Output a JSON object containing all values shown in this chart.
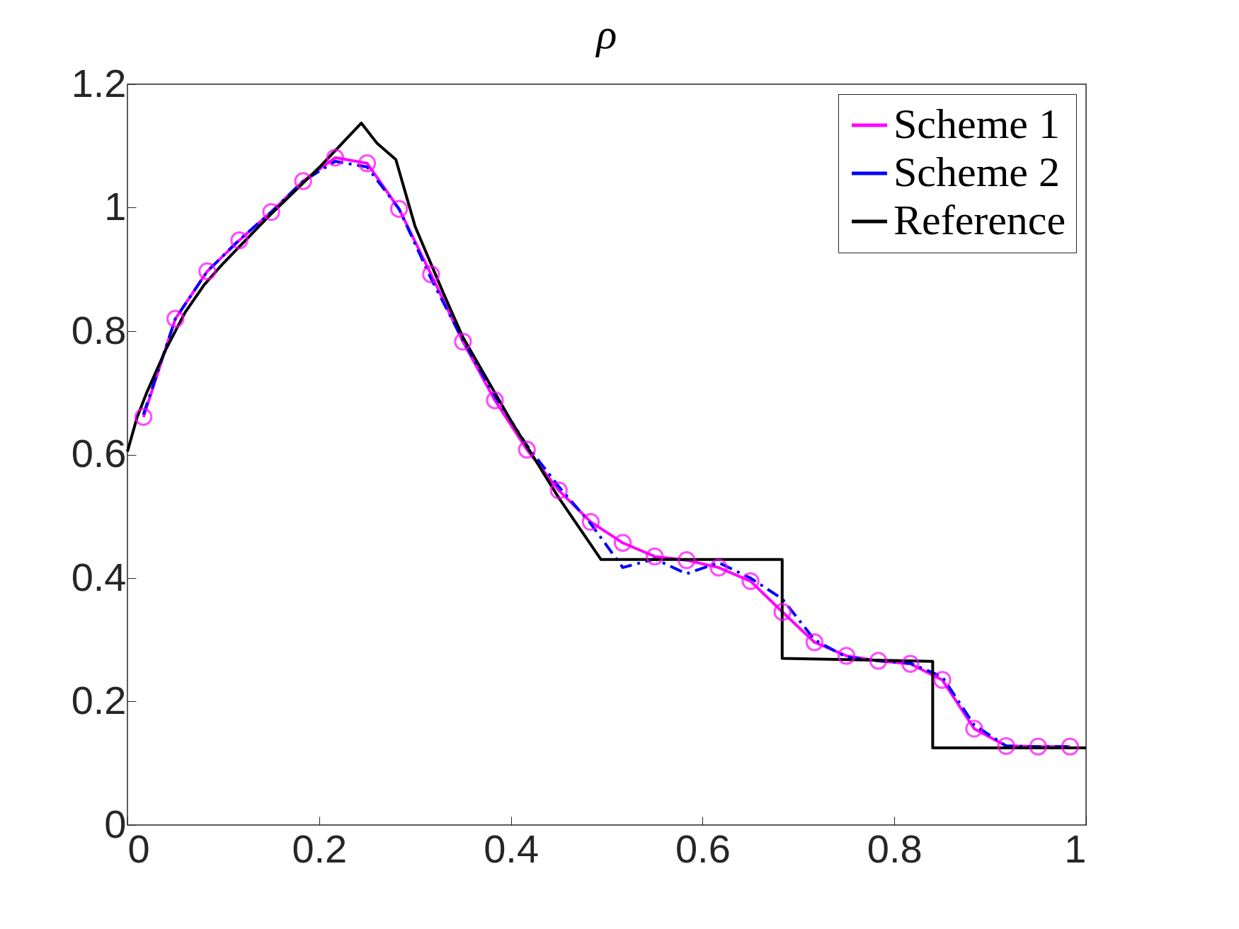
{
  "chart_data": {
    "type": "line",
    "title": "ρ",
    "xlim": [
      0,
      1
    ],
    "ylim": [
      0,
      1.2
    ],
    "xticks": [
      0,
      0.2,
      0.4,
      0.6,
      0.8,
      1
    ],
    "yticks": [
      0,
      0.2,
      0.4,
      0.6,
      0.8,
      1,
      1.2
    ],
    "grid": false,
    "legend": "top right",
    "series": [
      {
        "name": "Scheme 1",
        "color": "#ff00ff",
        "marker": "circle",
        "line_style": "solid",
        "x": [
          0.0167,
          0.05,
          0.0833,
          0.1167,
          0.15,
          0.1833,
          0.2167,
          0.25,
          0.2833,
          0.3167,
          0.35,
          0.3833,
          0.4167,
          0.45,
          0.4833,
          0.5167,
          0.55,
          0.5833,
          0.6167,
          0.65,
          0.6833,
          0.7167,
          0.75,
          0.7833,
          0.8167,
          0.85,
          0.8833,
          0.9167,
          0.95,
          0.9833
        ],
        "values": [
          0.661,
          0.82,
          0.897,
          0.947,
          0.993,
          1.043,
          1.081,
          1.072,
          0.998,
          0.892,
          0.783,
          0.688,
          0.608,
          0.542,
          0.491,
          0.457,
          0.435,
          0.429,
          0.417,
          0.395,
          0.345,
          0.296,
          0.274,
          0.266,
          0.261,
          0.235,
          0.156,
          0.128,
          0.127,
          0.127
        ]
      },
      {
        "name": "Scheme 2",
        "color": "#0000ff",
        "marker": "none",
        "line_style": "dashed",
        "x": [
          0.0167,
          0.05,
          0.0833,
          0.1167,
          0.15,
          0.1833,
          0.2167,
          0.25,
          0.2833,
          0.3167,
          0.35,
          0.3833,
          0.4167,
          0.45,
          0.4833,
          0.5167,
          0.55,
          0.5833,
          0.6167,
          0.65,
          0.6833,
          0.7167,
          0.75,
          0.7833,
          0.8167,
          0.85,
          0.8833,
          0.9167,
          0.95,
          0.9833
        ],
        "values": [
          0.665,
          0.82,
          0.897,
          0.948,
          0.993,
          1.043,
          1.075,
          1.066,
          0.998,
          0.885,
          0.785,
          0.695,
          0.615,
          0.548,
          0.488,
          0.417,
          0.431,
          0.407,
          0.425,
          0.4,
          0.366,
          0.3,
          0.272,
          0.266,
          0.262,
          0.24,
          0.162,
          0.128,
          0.127,
          0.127
        ]
      },
      {
        "name": "Reference",
        "color": "#000000",
        "marker": "none",
        "line_style": "solid",
        "x": [
          0,
          0.01,
          0.02,
          0.04,
          0.06,
          0.08,
          0.1,
          0.15,
          0.2,
          0.244,
          0.26,
          0.28,
          0.3,
          0.33,
          0.35,
          0.4,
          0.45,
          0.494,
          0.683,
          0.683,
          0.84,
          0.84,
          1
        ],
        "values": [
          0.605,
          0.66,
          0.7,
          0.77,
          0.83,
          0.875,
          0.91,
          0.99,
          1.065,
          1.137,
          1.105,
          1.078,
          0.97,
          0.86,
          0.79,
          0.655,
          0.53,
          0.43,
          0.43,
          0.27,
          0.265,
          0.125,
          0.125
        ]
      }
    ]
  }
}
